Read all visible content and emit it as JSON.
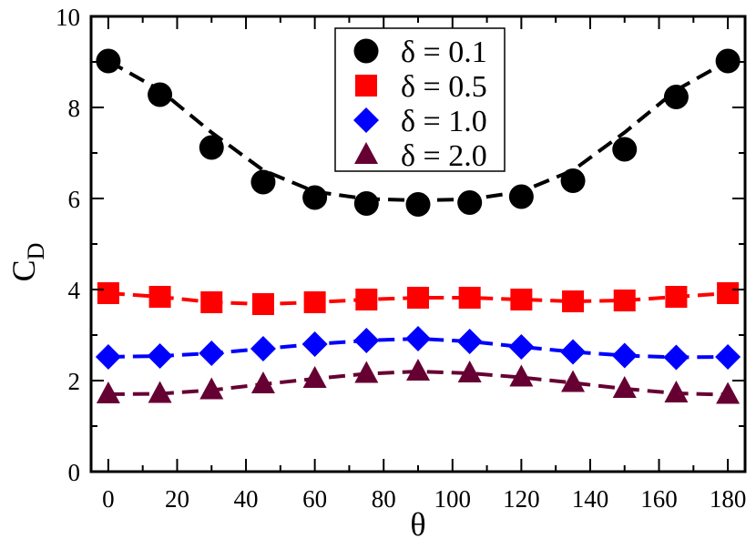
{
  "chart_data": {
    "type": "line",
    "xlabel": "θ",
    "ylabel": "C",
    "ylabel_subscript": "D",
    "xlim": [
      -5,
      185
    ],
    "ylim": [
      0,
      10
    ],
    "xticks": [
      0,
      20,
      40,
      60,
      80,
      100,
      120,
      140,
      160,
      180
    ],
    "yticks": [
      0,
      2,
      4,
      6,
      8,
      10
    ],
    "legend_position": "top-center",
    "grid": false,
    "x": [
      0,
      15,
      30,
      45,
      60,
      75,
      90,
      105,
      120,
      135,
      150,
      165,
      180
    ],
    "series": [
      {
        "name": "δ = 0.1",
        "marker": "circle",
        "color": "#000000",
        "values": [
          9.02,
          8.28,
          7.12,
          6.36,
          6.02,
          5.89,
          5.87,
          5.91,
          6.04,
          6.39,
          7.08,
          8.23,
          9.02
        ],
        "fit": [
          9.02,
          8.38,
          7.45,
          6.62,
          6.15,
          5.99,
          5.96,
          5.98,
          6.15,
          6.62,
          7.45,
          8.38,
          9.02
        ]
      },
      {
        "name": "δ = 0.5",
        "marker": "square",
        "color": "#ff0000",
        "values": [
          3.92,
          3.84,
          3.72,
          3.68,
          3.72,
          3.78,
          3.82,
          3.82,
          3.78,
          3.74,
          3.76,
          3.84,
          3.92
        ]
      },
      {
        "name": "δ = 1.0",
        "marker": "diamond",
        "color": "#0000ff",
        "values": [
          2.52,
          2.54,
          2.6,
          2.7,
          2.8,
          2.88,
          2.92,
          2.86,
          2.74,
          2.63,
          2.55,
          2.51,
          2.52
        ]
      },
      {
        "name": "δ = 2.0",
        "marker": "triangle",
        "color": "#660033",
        "values": [
          1.7,
          1.71,
          1.79,
          1.92,
          2.04,
          2.15,
          2.2,
          2.16,
          2.07,
          1.95,
          1.82,
          1.72,
          1.69
        ]
      }
    ]
  }
}
